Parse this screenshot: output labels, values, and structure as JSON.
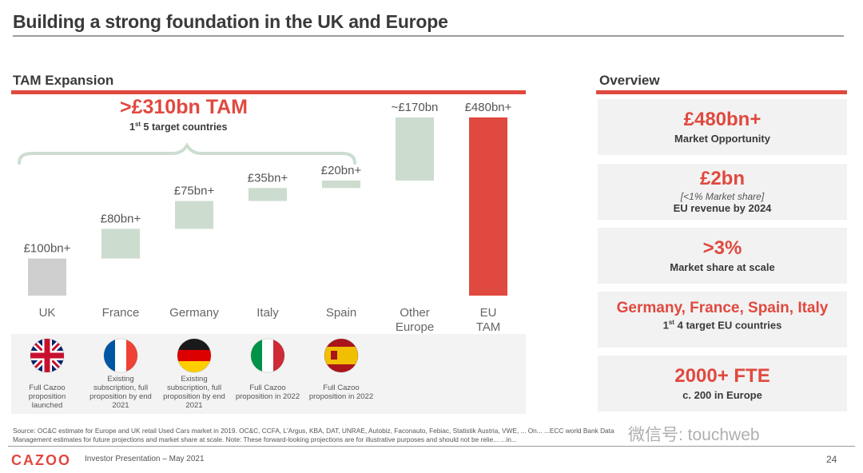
{
  "page_title": "Building a strong foundation in the UK and Europe",
  "tam_section_title": "TAM Expansion",
  "overview_title": "Overview",
  "tam_highlight": {
    "value": ">£310bn TAM",
    "subtitle_prefix": "1",
    "subtitle_sup": "st",
    "subtitle_suffix": " 5 target countries"
  },
  "chart_data": {
    "type": "bar",
    "subtype": "waterfall",
    "categories": [
      "UK",
      "France",
      "Germany",
      "Italy",
      "Spain",
      "Other Europe",
      "EU TAM"
    ],
    "values": [
      100,
      80,
      75,
      35,
      20,
      170,
      480
    ],
    "labels": [
      "£100bn+",
      "£80bn+",
      "£75bn+",
      "£35bn+",
      "£20bn+",
      "~£170bn",
      "£480bn+"
    ],
    "kinds": [
      "base",
      "step",
      "step",
      "step",
      "step",
      "step",
      "total"
    ],
    "ylim": [
      0,
      480
    ],
    "title": "",
    "xlabel": "",
    "ylabel": ""
  },
  "colors": {
    "accent": "#e0493f",
    "base_bar": "#cfcfcf",
    "step_bar": "#ccdccf",
    "text": "#3a3a3a"
  },
  "flags": [
    {
      "icon": "uk-flag-icon",
      "caption": "Full Cazoo proposition launched"
    },
    {
      "icon": "france-flag-icon",
      "caption": "Existing subscription, full proposition by end 2021"
    },
    {
      "icon": "germany-flag-icon",
      "caption": "Existing subscription, full proposition by end 2021"
    },
    {
      "icon": "italy-flag-icon",
      "caption": "Full Cazoo proposition in 2022"
    },
    {
      "icon": "spain-flag-icon",
      "caption": "Full Cazoo proposition in 2022"
    }
  ],
  "overview": [
    {
      "value": "£480bn+",
      "label": "Market Opportunity"
    },
    {
      "value": "£2bn",
      "note": "[<1% Market share]",
      "label": "EU revenue by 2024"
    },
    {
      "value": ">3%",
      "label": "Market share at scale"
    },
    {
      "value": "Germany, France, Spain, Italy",
      "label_prefix": "1",
      "label_sup": "st",
      "label_suffix": " 4 target EU countries"
    },
    {
      "value": "2000+ FTE",
      "label": "c. 200 in Europe"
    }
  ],
  "footer": {
    "source_line1": "Source: OC&C estimate for Europe  and UK retail Used Cars market in 2019. OC&C, CCFA, L'Argus, KBA, DAT, UNRAE, Autobiz, Faconauto, Febiac, Statistik Austria, VWE, ... On... ...ECC world Bank Data",
    "source_line2": "Management estimates for future projections and market share at scale. Note: These forward-looking projections are for illustrative purposes and should not be relie... ...in...",
    "logo": "CAZOO",
    "presentation": "Investor Presentation – May 2021",
    "page_number": "24",
    "watermark": "微信号: touchweb"
  }
}
